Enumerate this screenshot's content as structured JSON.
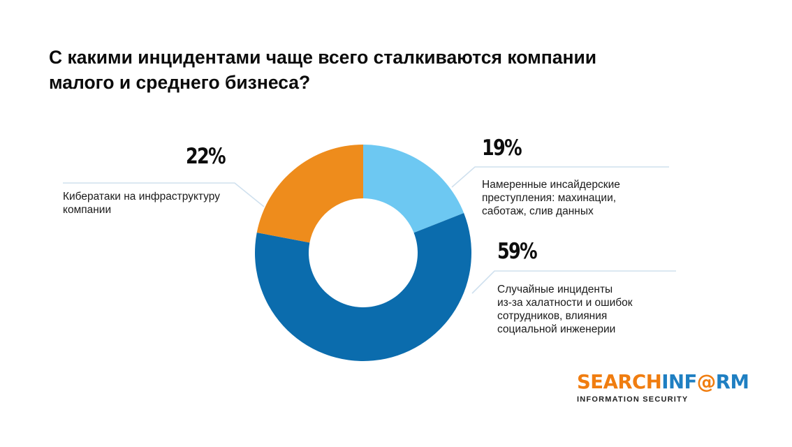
{
  "colors": {
    "background": "#ffffff",
    "slice_accidental": "#0b6cad",
    "slice_cyberattacks": "#ee8c1c",
    "slice_insider": "#6dc8f2",
    "leader_line": "#cfe0ee",
    "logo_orange": "#f07d10",
    "logo_blue": "#1f7fc2"
  },
  "chart_data": {
    "type": "pie",
    "variant": "donut",
    "title": "С какими инцидентами чаще всего сталкиваются компании малого и среднего бизнеса?",
    "title_lines": [
      "С какими инцидентами чаще всего сталкиваются компании",
      "малого и среднего бизнеса?"
    ],
    "slices": [
      {
        "key": "insider",
        "value": 19,
        "percent_label": "19%",
        "label_lines": [
          "Намеренные инсайдерские",
          "преступления: махинации,",
          "саботаж, слив данных"
        ],
        "color": "#6dc8f2"
      },
      {
        "key": "accidental",
        "value": 59,
        "percent_label": "59%",
        "label_lines": [
          "Случайные инциденты",
          "из-за халатности и ошибок",
          "сотрудников, влияния",
          "социальной инженерии"
        ],
        "color": "#0b6cad"
      },
      {
        "key": "cyberattacks",
        "value": 22,
        "percent_label": "22%",
        "label_lines": [
          "Кибератаки на инфраструктуру",
          "компании"
        ],
        "color": "#ee8c1c"
      }
    ]
  },
  "logo": {
    "part_orange": "SEARCH",
    "part_blue": "INF",
    "part_orange_o": "@",
    "part_blue_end": "RM",
    "tagline": "INFORMATION SECURITY"
  }
}
